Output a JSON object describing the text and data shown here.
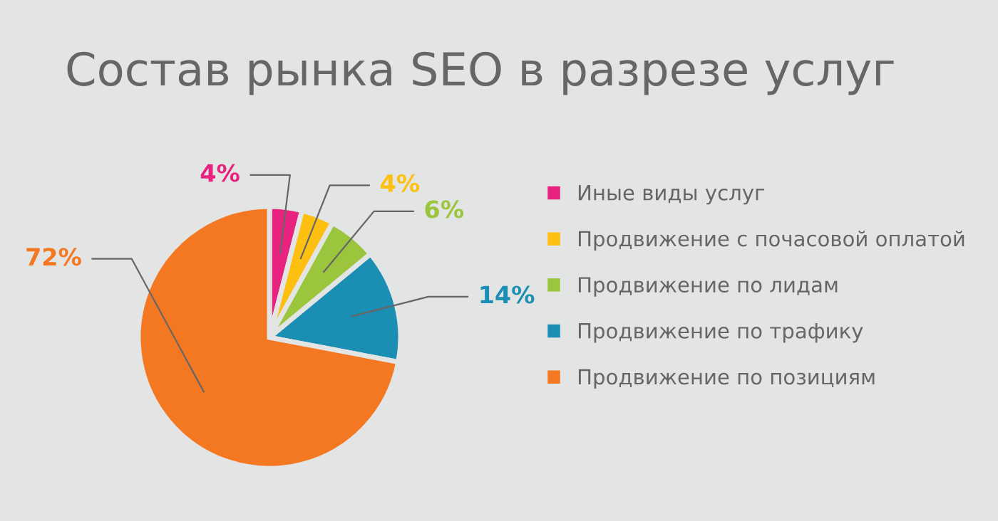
{
  "chart_data": {
    "type": "pie",
    "title": "Состав рынка SEO в разрезе услуг",
    "categories": [
      "Иные виды услуг",
      "Продвижение с почасовой оплатой",
      "Продвижение по лидам",
      "Продвижение по трафику",
      "Продвижение по позициям"
    ],
    "values": [
      4,
      4,
      6,
      14,
      72
    ],
    "colors": [
      "#e8237f",
      "#fdc010",
      "#9bc53d",
      "#1b8fb3",
      "#f47721"
    ],
    "value_labels": [
      "4%",
      "4%",
      "6%",
      "14%",
      "72%"
    ],
    "legend": "right"
  }
}
